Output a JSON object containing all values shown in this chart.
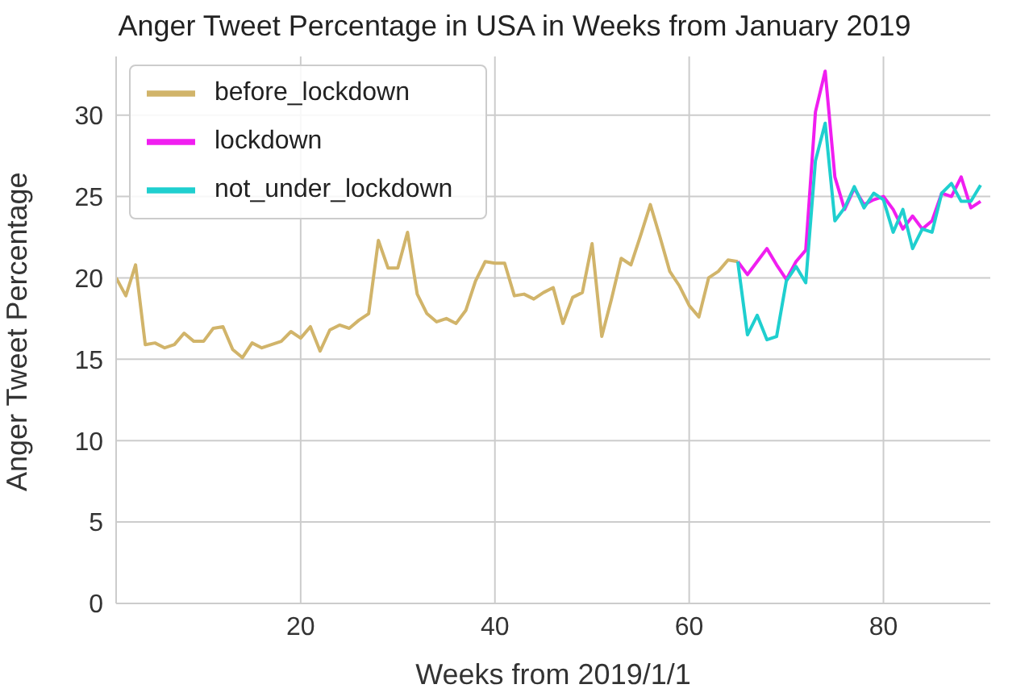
{
  "chart_data": {
    "type": "line",
    "title": "Anger Tweet Percentage in USA in Weeks from January 2019",
    "xlabel": "Weeks from 2019/1/1",
    "ylabel": "Anger Tweet Percentage",
    "xlim": [
      1,
      91
    ],
    "xticks": [
      20,
      40,
      60,
      80
    ],
    "ylim": [
      0,
      33.6
    ],
    "yticks": [
      0,
      5,
      10,
      15,
      20,
      25,
      30
    ],
    "grid": true,
    "legend": "top left",
    "line_style": "solid",
    "marker": "none",
    "series": [
      {
        "name": "before_lockdown",
        "color": "#d1b46a",
        "x": [
          1,
          2,
          3,
          4,
          5,
          6,
          7,
          8,
          9,
          10,
          11,
          12,
          13,
          14,
          15,
          16,
          17,
          18,
          19,
          20,
          21,
          22,
          23,
          24,
          25,
          26,
          27,
          28,
          29,
          30,
          31,
          32,
          33,
          34,
          35,
          36,
          37,
          38,
          39,
          40,
          41,
          42,
          43,
          44,
          45,
          46,
          47,
          48,
          49,
          50,
          51,
          52,
          53,
          54,
          55,
          56,
          57,
          58,
          59,
          60,
          61,
          62,
          63,
          64,
          65
        ],
        "values": [
          20.0,
          18.9,
          20.8,
          15.9,
          16.0,
          15.7,
          15.9,
          16.6,
          16.1,
          16.1,
          16.9,
          17.0,
          15.6,
          15.1,
          16.0,
          15.7,
          15.9,
          16.1,
          16.7,
          16.3,
          17.0,
          15.5,
          16.8,
          17.1,
          16.9,
          17.4,
          17.8,
          22.3,
          20.6,
          20.6,
          22.8,
          19.0,
          17.8,
          17.3,
          17.5,
          17.2,
          18.0,
          19.8,
          21.0,
          20.9,
          20.9,
          18.9,
          19.0,
          18.7,
          19.1,
          19.4,
          17.2,
          18.8,
          19.1,
          22.1,
          16.4,
          18.7,
          21.2,
          20.8,
          22.6,
          24.5,
          22.5,
          20.4,
          19.5,
          18.3,
          17.6,
          20.0,
          20.4,
          21.1,
          21.0
        ]
      },
      {
        "name": "lockdown",
        "color": "#f01ef0",
        "x": [
          65,
          66,
          67,
          68,
          69,
          70,
          71,
          72,
          73,
          74,
          75,
          76,
          77,
          78,
          79,
          80,
          81,
          82,
          83,
          84,
          85,
          86,
          87,
          88,
          89,
          90
        ],
        "values": [
          21.0,
          20.2,
          21.0,
          21.8,
          20.8,
          19.9,
          21.0,
          21.7,
          30.2,
          32.7,
          26.2,
          24.2,
          25.5,
          24.5,
          24.8,
          25.0,
          24.2,
          23.0,
          23.8,
          23.0,
          23.5,
          25.2,
          25.0,
          26.2,
          24.3,
          24.7
        ]
      },
      {
        "name": "not_under_lockdown",
        "color": "#1fcfcf",
        "x": [
          65,
          66,
          67,
          68,
          69,
          70,
          71,
          72,
          73,
          74,
          75,
          76,
          77,
          78,
          79,
          80,
          81,
          82,
          83,
          84,
          85,
          86,
          87,
          88,
          89,
          90
        ],
        "values": [
          21.0,
          16.5,
          17.7,
          16.2,
          16.4,
          19.8,
          20.7,
          19.7,
          27.2,
          29.5,
          23.5,
          24.3,
          25.6,
          24.3,
          25.2,
          24.8,
          22.8,
          24.2,
          21.8,
          23.0,
          22.8,
          25.2,
          25.8,
          24.7,
          24.7,
          25.7
        ]
      }
    ]
  }
}
